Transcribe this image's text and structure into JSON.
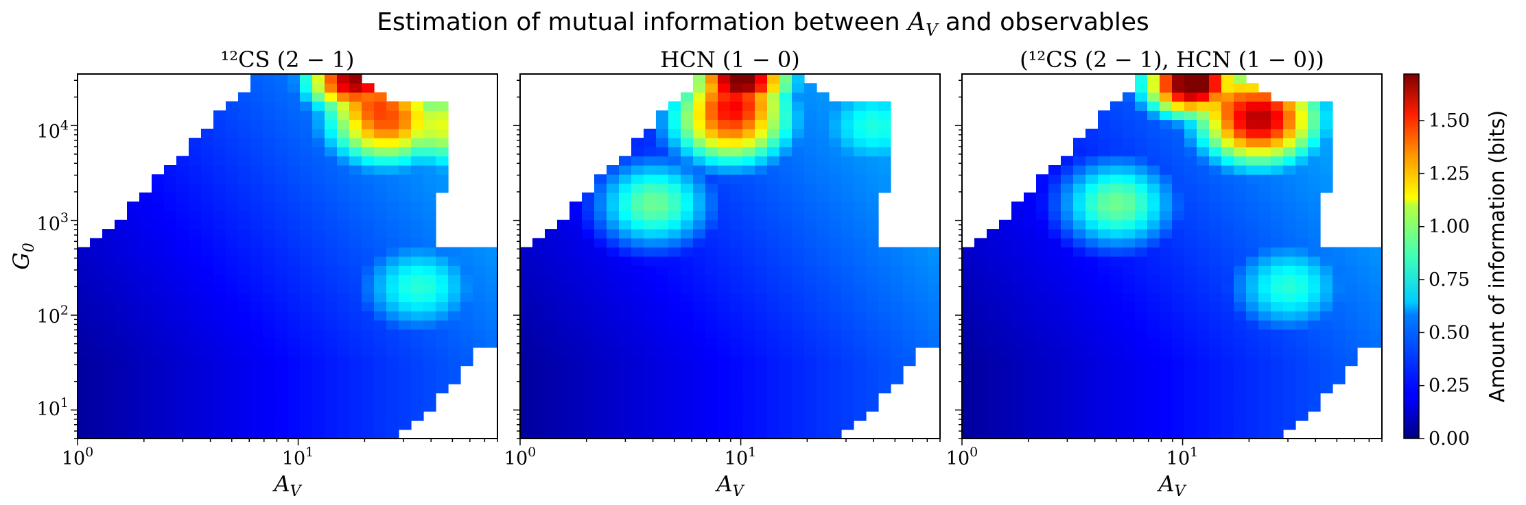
{
  "figure": {
    "suptitle_prefix": "Estimation of mutual information between ",
    "suptitle_var": "A",
    "suptitle_var_sub": "V",
    "suptitle_suffix": " and observables"
  },
  "colorbar": {
    "label": "Amount of information (bits)",
    "ticks": [
      "0.00",
      "0.25",
      "0.50",
      "0.75",
      "1.00",
      "1.25",
      "1.50"
    ],
    "range": [
      0,
      1.72
    ],
    "colormap": "jet"
  },
  "chart_data": [
    {
      "type": "heatmap",
      "title": "¹²CS (2 − 1)",
      "xlabel": "A_V",
      "ylabel": "G_0",
      "xscale": "log",
      "yscale": "log",
      "xlim": [
        1,
        80
      ],
      "ylim": [
        5,
        35000
      ],
      "x_ticks": [
        "10⁰",
        "10¹"
      ],
      "y_ticks": [
        "10¹",
        "10²",
        "10³",
        "10⁴"
      ],
      "hotspots": [
        {
          "A_V": 18,
          "G_0": 30000,
          "value": 1.55
        },
        {
          "A_V": 25,
          "G_0": 12000,
          "value": 1.25
        },
        {
          "A_V": 50,
          "G_0": 10000,
          "value": 0.85
        },
        {
          "A_V": 35,
          "G_0": 200,
          "value": 0.6
        }
      ]
    },
    {
      "type": "heatmap",
      "title": "HCN (1 − 0)",
      "xlabel": "A_V",
      "ylabel": "",
      "xscale": "log",
      "yscale": "log",
      "xlim": [
        1,
        80
      ],
      "ylim": [
        5,
        35000
      ],
      "x_ticks": [
        "10⁰",
        "10¹"
      ],
      "y_ticks": [],
      "hotspots": [
        {
          "A_V": 10,
          "G_0": 30000,
          "value": 1.65
        },
        {
          "A_V": 9,
          "G_0": 12000,
          "value": 1.3
        },
        {
          "A_V": 4,
          "G_0": 1500,
          "value": 0.75
        },
        {
          "A_V": 40,
          "G_0": 10000,
          "value": 0.55
        }
      ]
    },
    {
      "type": "heatmap",
      "title": "(¹²CS (2 − 1), HCN (1 − 0))",
      "xlabel": "A_V",
      "ylabel": "",
      "xscale": "log",
      "yscale": "log",
      "xlim": [
        1,
        80
      ],
      "ylim": [
        5,
        35000
      ],
      "x_ticks": [
        "10⁰",
        "10¹"
      ],
      "y_ticks": [],
      "hotspots": [
        {
          "A_V": 11,
          "G_0": 28000,
          "value": 1.72
        },
        {
          "A_V": 22,
          "G_0": 12000,
          "value": 1.5
        },
        {
          "A_V": 5,
          "G_0": 1500,
          "value": 0.75
        },
        {
          "A_V": 30,
          "G_0": 200,
          "value": 0.6
        }
      ]
    }
  ]
}
